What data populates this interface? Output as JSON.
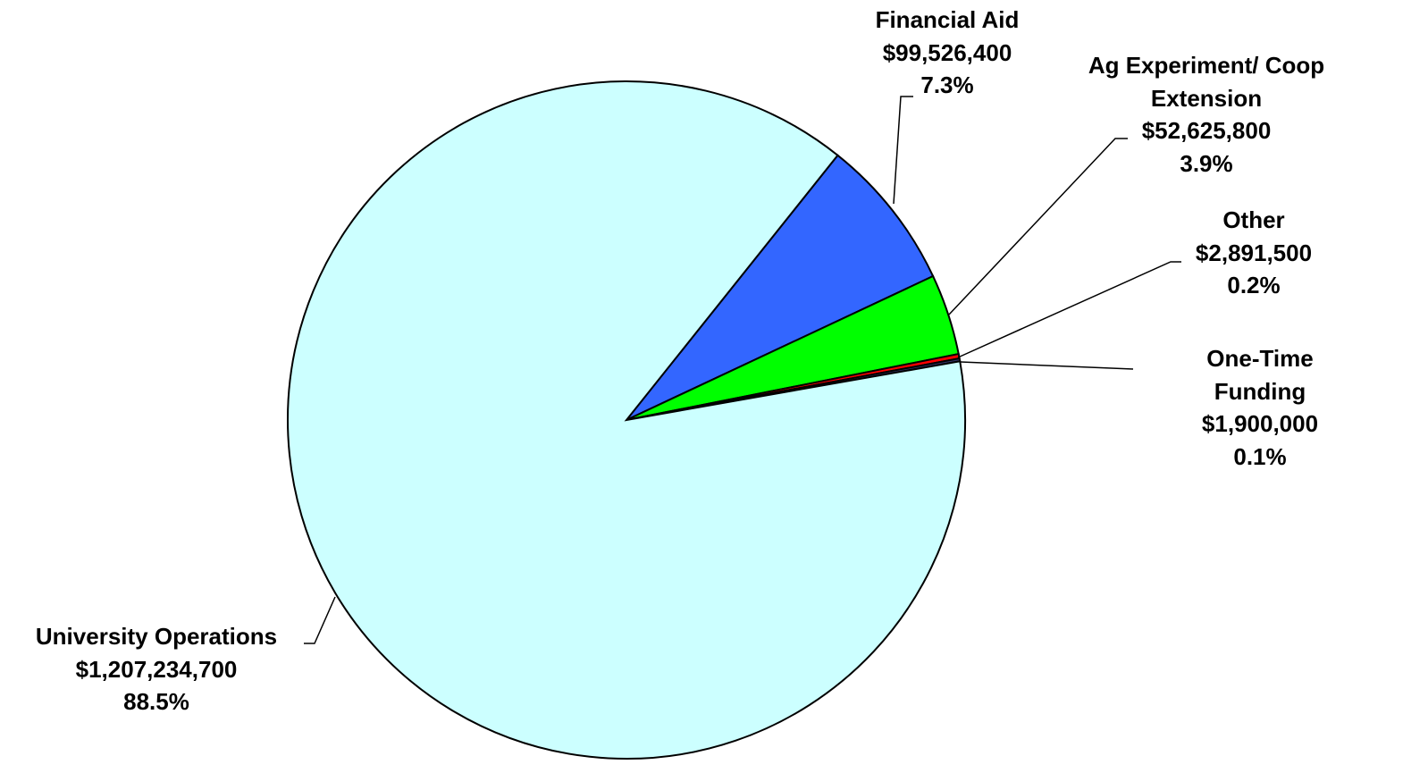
{
  "chart_data": {
    "type": "pie",
    "categories": [
      "Financial Aid",
      "Ag Experiment/ Coop Extension",
      "Other",
      "One-Time Funding",
      "University Operations"
    ],
    "values": [
      99526400,
      52625800,
      2891500,
      1900000,
      1207234700
    ],
    "value_labels": [
      "$99,526,400",
      "$52,625,800",
      "$2,891,500",
      "$1,900,000",
      "$1,207,234,700"
    ],
    "percentages": [
      7.3,
      3.9,
      0.2,
      0.1,
      88.5
    ],
    "percentage_labels": [
      "7.3%",
      "3.9%",
      "0.2%",
      "0.1%",
      "88.5%"
    ],
    "colors": [
      "#3366ff",
      "#00ff00",
      "#ff0000",
      "#333366",
      "#ccffff"
    ]
  }
}
